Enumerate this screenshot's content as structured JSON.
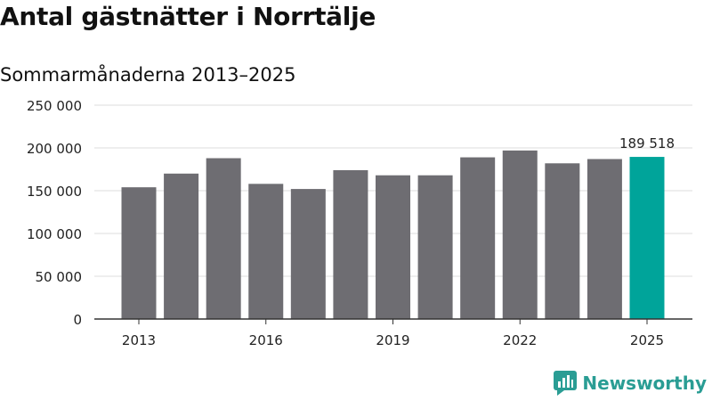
{
  "title": "Antal gästnätter i Norrtälje",
  "subtitle": "Sommarmånaderna 2013–2025",
  "brand": {
    "name": "Newsworthy",
    "logo_icon": "newsworthy-chart-icon",
    "color": "#2a9d94"
  },
  "chart_data": {
    "type": "bar",
    "title": "Antal gästnätter i Norrtälje",
    "subtitle": "Sommarmånaderna 2013–2025",
    "categories": [
      "2013",
      "2014",
      "2015",
      "2016",
      "2017",
      "2018",
      "2019",
      "2020",
      "2021",
      "2022",
      "2023",
      "2024",
      "2025"
    ],
    "values": [
      154000,
      170000,
      188000,
      158000,
      152000,
      174000,
      168000,
      168000,
      189000,
      197000,
      182000,
      187000,
      189518
    ],
    "x_tick_labels": [
      "2013",
      "2016",
      "2019",
      "2022",
      "2025"
    ],
    "y_ticks": [
      0,
      50000,
      100000,
      150000,
      200000,
      250000
    ],
    "y_tick_labels": [
      "0",
      "50 000",
      "100 000",
      "150 000",
      "200 000",
      "250 000"
    ],
    "ylim": [
      0,
      250000
    ],
    "highlight": {
      "category": "2025",
      "label": "189 518",
      "color": "#00a49a"
    },
    "bar_color": "#6e6d72",
    "grid": true,
    "legend": "none"
  }
}
